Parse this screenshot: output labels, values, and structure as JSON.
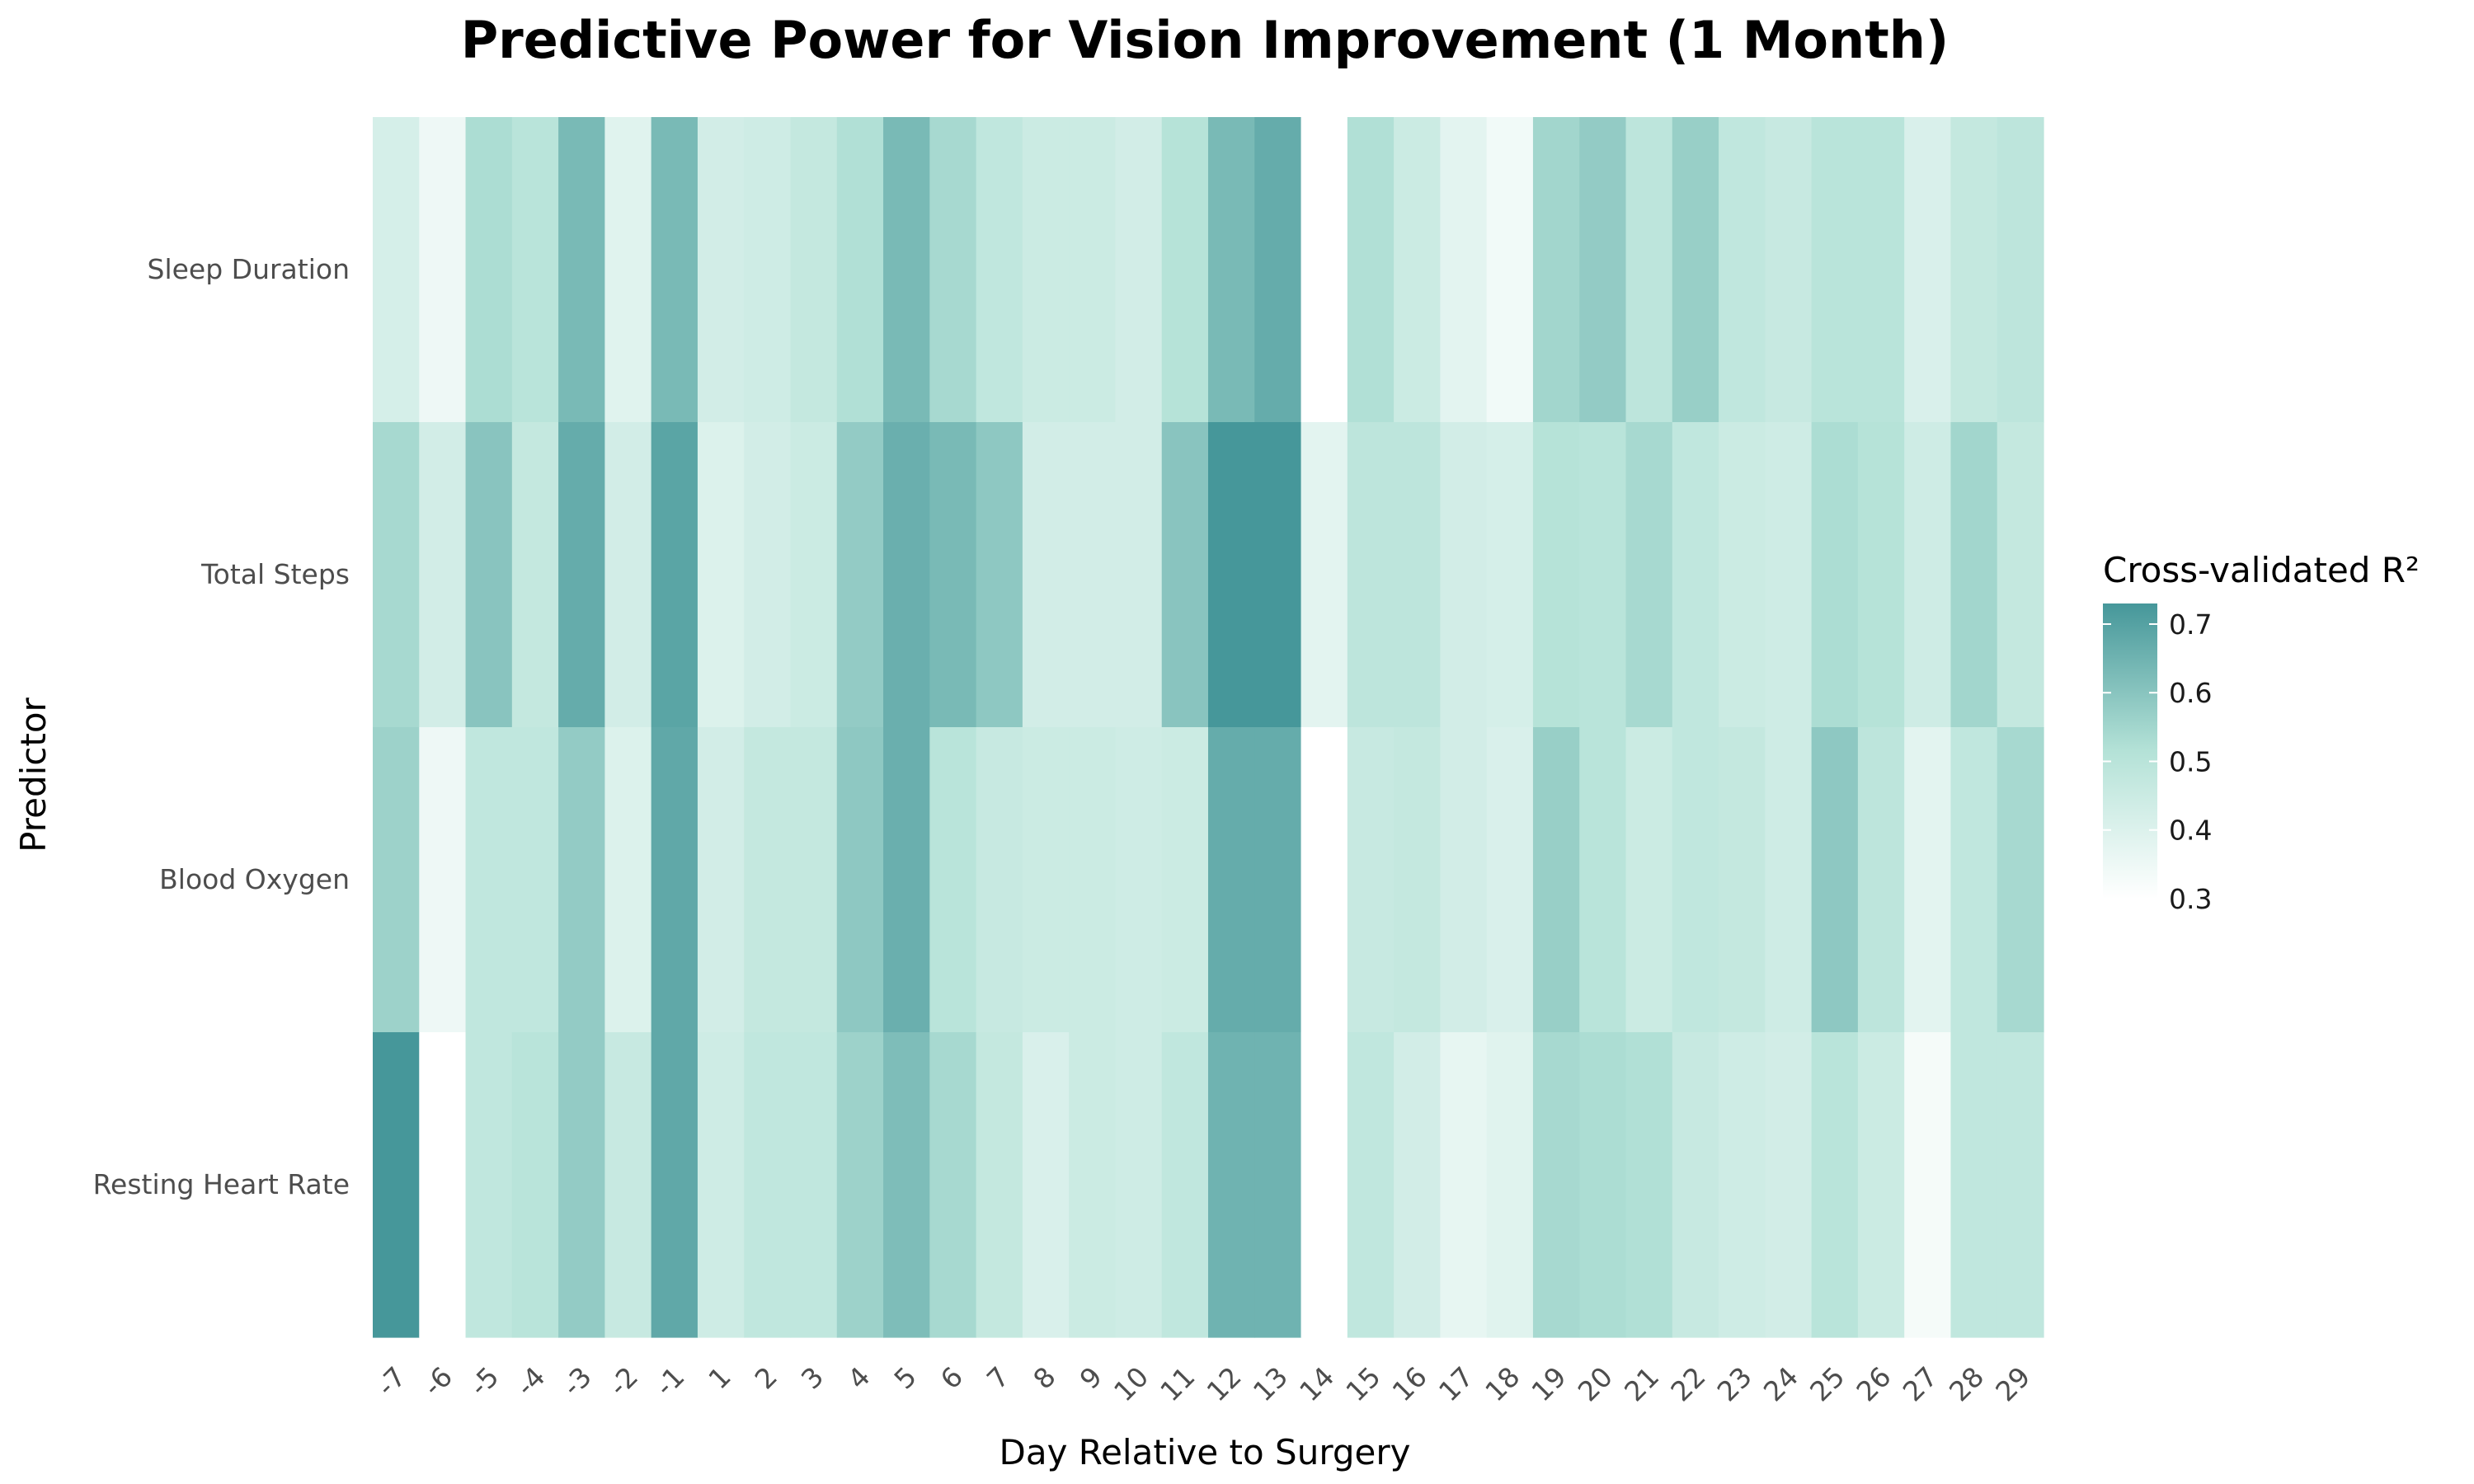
{
  "chart_data": {
    "type": "heatmap",
    "title": "Predictive Power for Vision Improvement (1 Month)",
    "xlabel": "Day Relative to Surgery",
    "ylabel": "Predictor",
    "x": [
      "-7",
      "-6",
      "-5",
      "-4",
      "-3",
      "-2",
      "-1",
      "1",
      "2",
      "3",
      "4",
      "5",
      "6",
      "7",
      "8",
      "9",
      "10",
      "11",
      "12",
      "13",
      "14",
      "15",
      "16",
      "17",
      "18",
      "19",
      "20",
      "21",
      "22",
      "23",
      "24",
      "25",
      "26",
      "27",
      "28",
      "29"
    ],
    "y": [
      "Sleep Duration",
      "Total Steps",
      "Blood Oxygen",
      "Resting Heart Rate"
    ],
    "values": [
      [
        0.42,
        0.35,
        0.53,
        0.5,
        0.63,
        0.39,
        0.63,
        0.43,
        0.44,
        0.47,
        0.52,
        0.63,
        0.54,
        0.48,
        0.45,
        0.45,
        0.43,
        0.51,
        0.63,
        0.67,
        0.3,
        0.52,
        0.45,
        0.38,
        0.34,
        0.55,
        0.58,
        0.49,
        0.57,
        0.48,
        0.46,
        0.5,
        0.5,
        0.41,
        0.47,
        0.49
      ],
      [
        0.54,
        0.43,
        0.6,
        0.47,
        0.67,
        0.43,
        0.69,
        0.4,
        0.43,
        0.45,
        0.58,
        0.66,
        0.63,
        0.59,
        0.43,
        0.43,
        0.43,
        0.6,
        0.74,
        0.74,
        0.38,
        0.49,
        0.49,
        0.43,
        0.42,
        0.51,
        0.5,
        0.54,
        0.48,
        0.45,
        0.44,
        0.53,
        0.51,
        0.44,
        0.55,
        0.47
      ],
      [
        0.56,
        0.35,
        0.48,
        0.48,
        0.58,
        0.4,
        0.68,
        0.43,
        0.47,
        0.47,
        0.59,
        0.66,
        0.5,
        0.46,
        0.45,
        0.45,
        0.44,
        0.45,
        0.67,
        0.67,
        0.3,
        0.46,
        0.47,
        0.43,
        0.41,
        0.57,
        0.5,
        0.45,
        0.48,
        0.47,
        0.44,
        0.59,
        0.49,
        0.38,
        0.48,
        0.54
      ],
      [
        0.74,
        0.3,
        0.48,
        0.5,
        0.58,
        0.46,
        0.68,
        0.44,
        0.48,
        0.48,
        0.56,
        0.62,
        0.54,
        0.47,
        0.41,
        0.45,
        0.44,
        0.48,
        0.65,
        0.65,
        0.3,
        0.48,
        0.43,
        0.37,
        0.39,
        0.54,
        0.53,
        0.52,
        0.46,
        0.44,
        0.43,
        0.5,
        0.45,
        0.33,
        0.48,
        0.48
      ]
    ],
    "colorscale": {
      "title": "Cross-validated R²",
      "min": 0.3,
      "max": 0.73,
      "low_color": "#ffffff",
      "mid_color": "#b4e2d7",
      "high_color": "#46979a",
      "ticks": [
        "0.3",
        "0.4",
        "0.5",
        "0.6",
        "0.7"
      ]
    }
  }
}
